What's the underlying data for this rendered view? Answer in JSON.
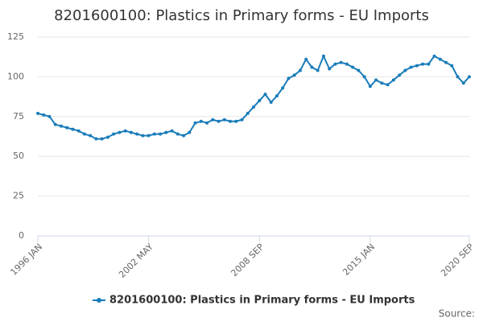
{
  "chart_data": {
    "type": "line",
    "title": "8201600100: Plastics in Primary forms - EU Imports",
    "source": "Source:",
    "categories": [
      "1996 JAN",
      null,
      null,
      null,
      null,
      null,
      null,
      null,
      null,
      null,
      null,
      null,
      null,
      null,
      null,
      null,
      null,
      null,
      null,
      "2002 MAY",
      null,
      null,
      null,
      null,
      null,
      null,
      null,
      null,
      null,
      null,
      null,
      null,
      null,
      null,
      null,
      null,
      null,
      null,
      "2008 SEP",
      null,
      null,
      null,
      null,
      null,
      null,
      null,
      null,
      null,
      null,
      null,
      null,
      null,
      null,
      null,
      null,
      null,
      null,
      "2015 JAN",
      null,
      null,
      null,
      null,
      null,
      null,
      null,
      null,
      null,
      null,
      null,
      null,
      null,
      null,
      null,
      null,
      "2020 SEP"
    ],
    "series": [
      {
        "name": "8201600100: Plastics in Primary forms - EU Imports",
        "color": "#1a7cb9",
        "values": [
          77,
          76,
          75,
          70,
          69,
          68,
          67,
          66,
          64,
          63,
          61,
          61,
          62,
          64,
          65,
          66,
          65,
          64,
          63,
          63,
          64,
          64,
          65,
          66,
          64,
          63,
          65,
          71,
          72,
          71,
          73,
          72,
          73,
          72,
          72,
          73,
          77,
          81,
          85,
          89,
          84,
          88,
          93,
          99,
          101,
          104,
          111,
          106,
          104,
          113,
          105,
          108,
          109,
          108,
          106,
          104,
          100,
          94,
          98,
          96,
          95,
          98,
          101,
          104,
          106,
          107,
          108,
          108,
          113,
          111,
          109,
          107,
          100,
          96,
          100
        ]
      }
    ],
    "ylim": [
      0,
      125
    ],
    "yticks": [
      0,
      25,
      50,
      75,
      100,
      125
    ],
    "grid": true
  }
}
